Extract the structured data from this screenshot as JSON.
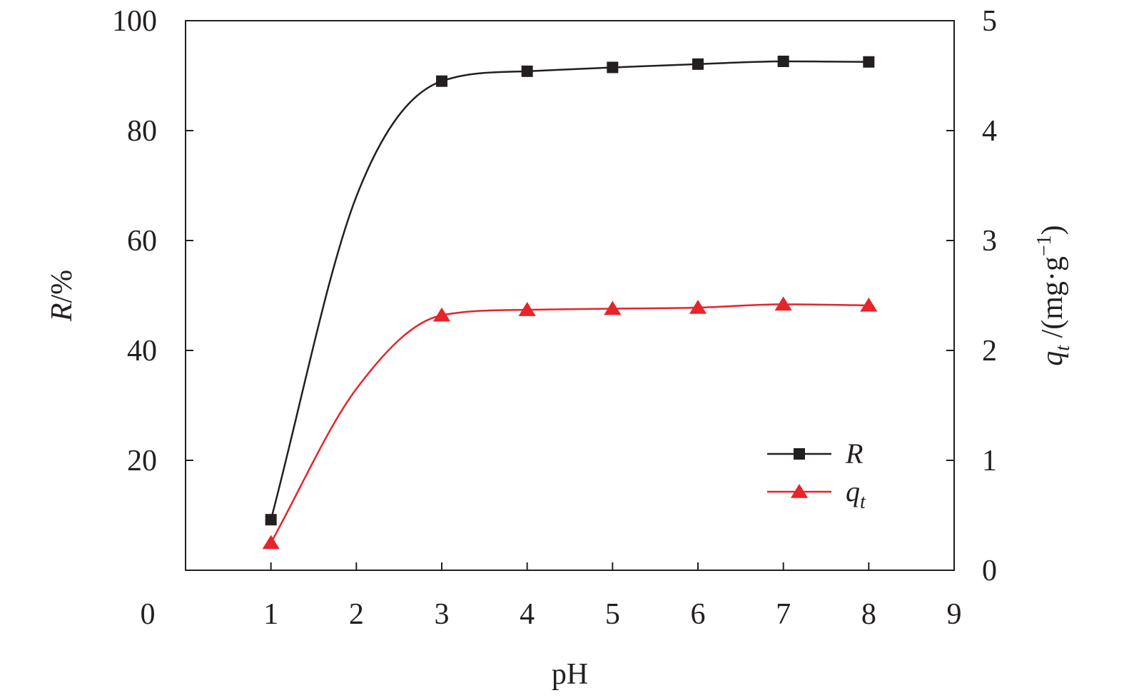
{
  "chart_data": {
    "type": "line",
    "xlabel": "pH",
    "ylabel_left": {
      "italic": "R",
      "rest": "/%"
    },
    "ylabel_right": {
      "italic": "q",
      "sub": "t",
      "rest": " /(mg·g",
      "sup": "−1",
      "close": ")"
    },
    "xlim": [
      0,
      9
    ],
    "ylim_left": [
      0,
      100
    ],
    "ylim_right": [
      0,
      5
    ],
    "x_ticks": [
      "0",
      "1",
      "2",
      "3",
      "4",
      "5",
      "6",
      "7",
      "8",
      "9"
    ],
    "y_left_ticks": [
      "20",
      "40",
      "60",
      "80",
      "100"
    ],
    "y_right_ticks": [
      "0",
      "1",
      "2",
      "3",
      "4",
      "5"
    ],
    "x": [
      1,
      2,
      3,
      4,
      5,
      6,
      7,
      8
    ],
    "series": [
      {
        "name": "R",
        "axis": "left",
        "marker": "square",
        "color": "#231f20",
        "values": [
          9.2,
          68.0,
          89.0,
          90.8,
          91.5,
          92.1,
          92.6,
          92.5
        ],
        "show_marker": [
          true,
          false,
          true,
          true,
          true,
          true,
          true,
          true
        ]
      },
      {
        "name": "q",
        "name_sub": "t",
        "axis": "right",
        "marker": "triangle",
        "color": "#e8232a",
        "values": [
          0.25,
          1.65,
          2.32,
          2.37,
          2.38,
          2.39,
          2.42,
          2.41
        ],
        "show_marker": [
          true,
          false,
          true,
          true,
          true,
          true,
          true,
          true
        ]
      }
    ],
    "legend_position": "lower-right",
    "grid": false
  }
}
